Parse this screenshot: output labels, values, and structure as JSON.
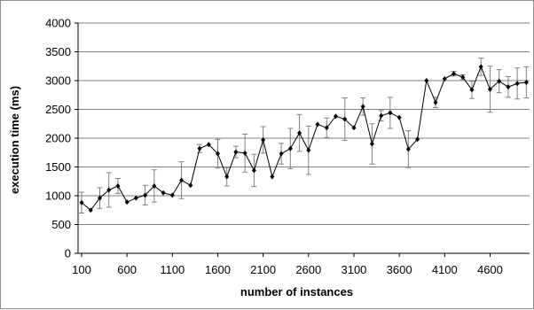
{
  "chart_data": {
    "type": "line",
    "title": "",
    "xlabel": "number of instances",
    "ylabel": "execution time (ms)",
    "ylim": [
      0,
      4000
    ],
    "xlim": [
      100,
      5000
    ],
    "y_ticks": [
      0,
      500,
      1000,
      1500,
      2000,
      2500,
      3000,
      3500,
      4000
    ],
    "x_tick_labels": [
      100,
      600,
      1100,
      1600,
      2100,
      2600,
      3100,
      3600,
      4100,
      4600
    ],
    "grid": "horizontal",
    "legend": "none",
    "marker": "diamond",
    "colors": {
      "line": "#000000",
      "error_bar": "#808080",
      "grid": "#808080"
    },
    "series": [
      {
        "x": [
          100,
          200,
          300,
          400,
          500,
          600,
          700,
          800,
          900,
          1000,
          1100,
          1200,
          1300,
          1400,
          1500,
          1600,
          1700,
          1800,
          1900,
          2000,
          2100,
          2200,
          2300,
          2400,
          2500,
          2600,
          2700,
          2800,
          2900,
          3000,
          3100,
          3200,
          3300,
          3400,
          3500,
          3600,
          3700,
          3800,
          3900,
          4000,
          4100,
          4200,
          4300,
          4400,
          4500,
          4600,
          4700,
          4800,
          4900,
          5000
        ],
        "values": [
          880,
          750,
          960,
          1100,
          1170,
          890,
          960,
          1010,
          1170,
          1050,
          1010,
          1270,
          1180,
          1820,
          1890,
          1730,
          1330,
          1760,
          1740,
          1440,
          1970,
          1330,
          1730,
          1820,
          2090,
          1790,
          2240,
          2180,
          2380,
          2330,
          2180,
          2550,
          1900,
          2390,
          2440,
          2360,
          1810,
          1980,
          3000,
          2620,
          3030,
          3120,
          3060,
          2840,
          3240,
          2850,
          2990,
          2890,
          2950,
          2970
        ],
        "error": [
          180,
          0,
          180,
          300,
          130,
          0,
          0,
          170,
          280,
          0,
          0,
          320,
          0,
          70,
          0,
          250,
          160,
          100,
          330,
          280,
          230,
          0,
          180,
          350,
          320,
          420,
          0,
          170,
          0,
          370,
          0,
          150,
          350,
          90,
          270,
          0,
          320,
          0,
          0,
          90,
          0,
          40,
          40,
          150,
          150,
          400,
          200,
          180,
          270,
          270
        ]
      }
    ]
  }
}
